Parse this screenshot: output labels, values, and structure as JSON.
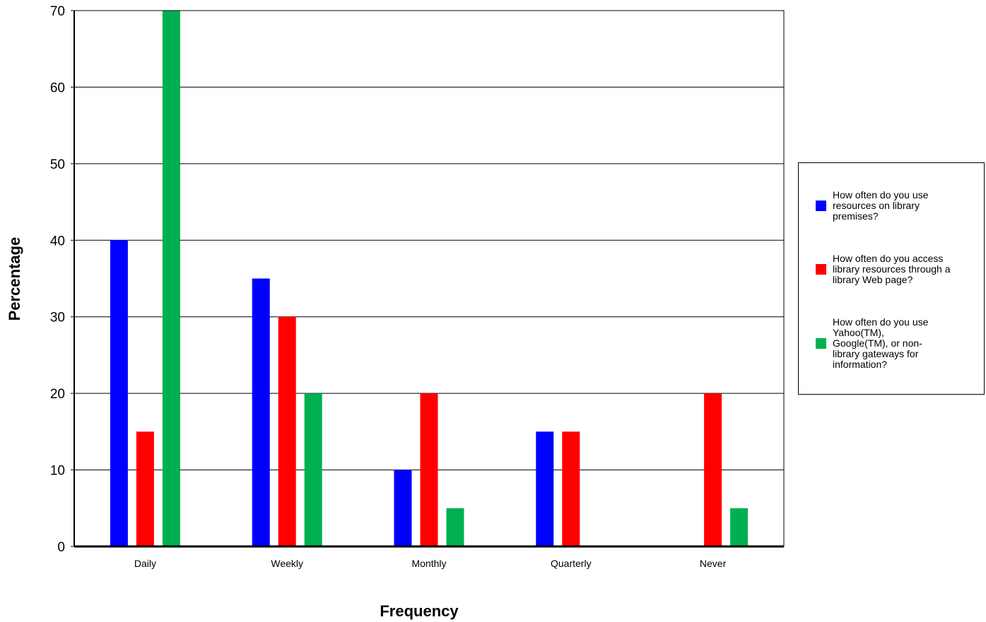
{
  "chart_data": {
    "type": "bar",
    "categories": [
      "Daily",
      "Weekly",
      "Monthly",
      "Quarterly",
      "Never"
    ],
    "series": [
      {
        "name": "How often do you use resources on library premises?",
        "color": "#0000ff",
        "values": [
          40,
          35,
          10,
          15,
          0
        ]
      },
      {
        "name": "How often do you access library resources through a library Web page?",
        "color": "#ff0000",
        "values": [
          15,
          30,
          20,
          15,
          20
        ]
      },
      {
        "name": "How often do you use Yahoo(TM), Google(TM), or non-library gateways for information?",
        "color": "#00b050",
        "values": [
          70,
          20,
          5,
          0,
          5
        ]
      }
    ],
    "xlabel": "Frequency",
    "ylabel": "Percentage",
    "ylim": [
      0,
      70
    ],
    "yticks": [
      0,
      10,
      20,
      30,
      40,
      50,
      60,
      70
    ],
    "grid": true,
    "legend_position": "right"
  }
}
